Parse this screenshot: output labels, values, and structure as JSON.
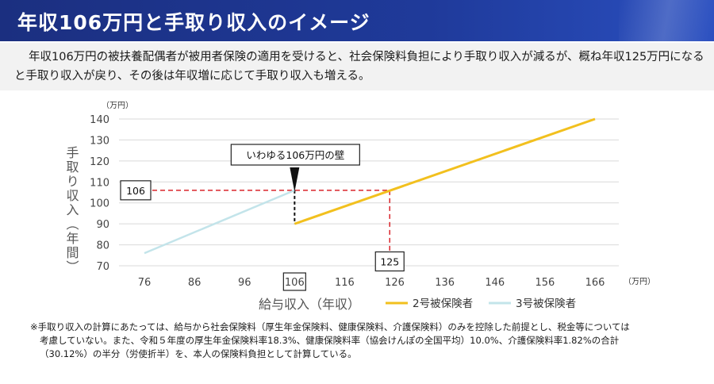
{
  "header": {
    "title": "年収106万円と手取り収入のイメージ",
    "bar_color": "#1b2f80"
  },
  "summary": {
    "text": "年収106万円の被扶養配偶者が被用者保険の適用を受けると、社会保険料負担により手取り収入が減るが、概ね年収125万円になると手取り収入が戻り、その後は年収増に応じて手取り収入も増える。"
  },
  "chart_data": {
    "type": "line",
    "xlabel": "給与収入（年収）",
    "ylabel": "手取り収入（年間）",
    "x_unit": "（万円）",
    "y_unit": "（万円）",
    "xlim": [
      76,
      166
    ],
    "ylim": [
      70,
      140
    ],
    "x_ticks": [
      "76",
      "86",
      "96",
      "106",
      "116",
      "126",
      "136",
      "146",
      "156",
      "166"
    ],
    "y_ticks": [
      "70",
      "80",
      "90",
      "100",
      "110",
      "120",
      "130",
      "140"
    ],
    "highlighted_x_tick": "106",
    "grid": true,
    "legend_position": "bottom-right",
    "series": [
      {
        "name": "2号被保険者",
        "color": "#f2c01e",
        "x": [
          106,
          166
        ],
        "y": [
          90,
          140
        ]
      },
      {
        "name": "3号被保険者",
        "color": "#c3e4ea",
        "x": [
          76,
          106
        ],
        "y": [
          76,
          106
        ]
      }
    ],
    "annotations": {
      "wall_label": "いわゆる106万円の壁",
      "wall_x": 106,
      "y_marker_label": "106",
      "y_marker_value": 106,
      "x_marker_label": "125",
      "x_marker_value": 125,
      "dash_color": "#d9252b"
    }
  },
  "footnote": {
    "lines": [
      "※手取り収入の計算にあたっては、給与から社会保険料（厚生年金保険料、健康保険料、介護保険料）のみを控除した前提とし、税金等については",
      "考慮していない。また、令和５年度の厚生年金保険料率18.3%、健康保険料率（協会けんぽの全国平均）10.0%、介護保険料率1.82%の合計",
      "（30.12%）の半分（労使折半）を、本人の保険料負担として計算している。"
    ]
  }
}
